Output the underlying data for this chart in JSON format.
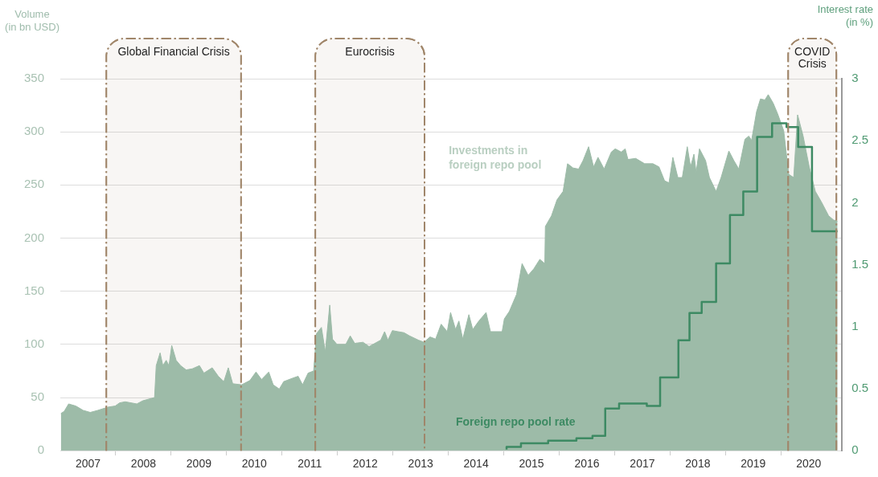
{
  "chart_data": {
    "type": "area",
    "ylabel": "Volume\n(in bn USD)",
    "y2label": "Interest rate\n(in %)",
    "xlim": [
      2007,
      2021.1
    ],
    "xticks": [
      {
        "value": 2007.5,
        "label": "2007"
      },
      {
        "value": 2008,
        "label": null
      },
      {
        "value": 2008.5,
        "label": "2008"
      },
      {
        "value": 2009,
        "label": null
      },
      {
        "value": 2009.5,
        "label": "2009"
      },
      {
        "value": 2010,
        "label": null
      },
      {
        "value": 2010.5,
        "label": "2010"
      },
      {
        "value": 2011,
        "label": null
      },
      {
        "value": 2011.5,
        "label": "2011"
      },
      {
        "value": 2012,
        "label": null
      },
      {
        "value": 2012.5,
        "label": "2012"
      },
      {
        "value": 2013,
        "label": null
      },
      {
        "value": 2013.5,
        "label": "2013"
      },
      {
        "value": 2014,
        "label": null
      },
      {
        "value": 2014.5,
        "label": "2014"
      },
      {
        "value": 2015,
        "label": null
      },
      {
        "value": 2015.5,
        "label": "2015"
      },
      {
        "value": 2016,
        "label": null
      },
      {
        "value": 2016.5,
        "label": "2016"
      },
      {
        "value": 2017,
        "label": null
      },
      {
        "value": 2017.5,
        "label": "2017"
      },
      {
        "value": 2018,
        "label": null
      },
      {
        "value": 2018.5,
        "label": "2018"
      },
      {
        "value": 2019,
        "label": null
      },
      {
        "value": 2019.5,
        "label": "2019"
      },
      {
        "value": 2020,
        "label": null
      },
      {
        "value": 2020.5,
        "label": "2020"
      }
    ],
    "ylim": [
      0,
      350
    ],
    "yticks": [
      0,
      50,
      100,
      150,
      200,
      250,
      300,
      350
    ],
    "y2lim": [
      0,
      3
    ],
    "y2ticks": [
      0,
      0.5,
      1,
      1.5,
      2,
      2.5,
      3
    ],
    "grid": "y",
    "legend": false,
    "bands": [
      {
        "axis": "x",
        "from": 2007.83,
        "to": 2010.26,
        "label": "Global Financial Crisis",
        "color": "#a0866a"
      },
      {
        "axis": "x",
        "from": 2011.6,
        "to": 2013.57,
        "label": "Eurocrisis",
        "color": "#a0866a"
      },
      {
        "axis": "x",
        "from": 2020.13,
        "to": 2021.0,
        "label": "COVID Crisis",
        "color": "#a0866a"
      }
    ],
    "series": [
      {
        "name": "Investments in foreign repo pool",
        "type": "area",
        "color": "#9dbba8",
        "x": [
          2007.01,
          2007.07,
          2007.15,
          2007.28,
          2007.41,
          2007.54,
          2007.68,
          2007.86,
          2007.99,
          2008.07,
          2008.17,
          2008.38,
          2008.49,
          2008.7,
          2008.73,
          2008.8,
          2008.85,
          2008.91,
          2008.96,
          2009.01,
          2009.09,
          2009.17,
          2009.27,
          2009.38,
          2009.51,
          2009.59,
          2009.74,
          2009.85,
          2009.95,
          2010.03,
          2010.11,
          2010.27,
          2010.42,
          2010.53,
          2010.63,
          2010.76,
          2010.84,
          2010.95,
          2011.03,
          2011.18,
          2011.29,
          2011.37,
          2011.47,
          2011.57,
          2011.62,
          2011.71,
          2011.78,
          2011.86,
          2011.91,
          2011.99,
          2012.15,
          2012.23,
          2012.31,
          2012.46,
          2012.57,
          2012.78,
          2012.85,
          2012.91,
          2012.99,
          2013.09,
          2013.2,
          2013.3,
          2013.46,
          2013.56,
          2013.67,
          2013.77,
          2013.87,
          2013.98,
          2014.04,
          2014.13,
          2014.19,
          2014.26,
          2014.37,
          2014.44,
          2014.55,
          2014.68,
          2014.76,
          2014.97,
          2015.01,
          2015.1,
          2015.23,
          2015.33,
          2015.44,
          2015.54,
          2015.65,
          2015.74,
          2015.75,
          2015.86,
          2015.96,
          2016.07,
          2016.15,
          2016.25,
          2016.35,
          2016.43,
          2016.53,
          2016.62,
          2016.7,
          2016.81,
          2016.94,
          2017.01,
          2017.12,
          2017.19,
          2017.24,
          2017.38,
          2017.54,
          2017.69,
          2017.8,
          2017.9,
          2017.98,
          2018.05,
          2018.14,
          2018.22,
          2018.31,
          2018.37,
          2018.43,
          2018.47,
          2018.53,
          2018.64,
          2018.71,
          2018.83,
          2018.92,
          2019.06,
          2019.15,
          2019.24,
          2019.35,
          2019.42,
          2019.47,
          2019.56,
          2019.63,
          2019.71,
          2019.77,
          2019.86,
          2019.94,
          2020.05,
          2020.14,
          2020.23,
          2020.3,
          2020.4,
          2020.51,
          2020.62,
          2020.73,
          2020.86,
          2020.95,
          2021.02
        ],
        "values": [
          35,
          37,
          44,
          42,
          38,
          36,
          38,
          41,
          42,
          45,
          46,
          44,
          47,
          50,
          80,
          92,
          80,
          85,
          80,
          99,
          85,
          80,
          76,
          77,
          80,
          73,
          78,
          70,
          65,
          78,
          63,
          62,
          66,
          74,
          67,
          74,
          62,
          58,
          65,
          68,
          70,
          62,
          73,
          75,
          110,
          116,
          93,
          137,
          105,
          100,
          100,
          108,
          101,
          102,
          98,
          104,
          112,
          104,
          113,
          112,
          111,
          108,
          104,
          102,
          107,
          105,
          119,
          112,
          130,
          114,
          122,
          105,
          128,
          114,
          122,
          130,
          112,
          112,
          124,
          131,
          147,
          176,
          165,
          171,
          180,
          176,
          211,
          221,
          236,
          244,
          270,
          266,
          265,
          273,
          286,
          267,
          276,
          265,
          281,
          284,
          281,
          284,
          274,
          275,
          270,
          270,
          267,
          254,
          252,
          276,
          257,
          257,
          286,
          267,
          279,
          262,
          284,
          273,
          257,
          244,
          257,
          282,
          273,
          265,
          293,
          296,
          292,
          319,
          331,
          330,
          335,
          327,
          317,
          301,
          260,
          257,
          316,
          296,
          267,
          244,
          234,
          221,
          217,
          216
        ]
      },
      {
        "name": "Foreign repo pool rate",
        "type": "step",
        "color": "#3d8a63",
        "axis": "y2",
        "x": [
          2015.05,
          2015.31,
          2015.8,
          2016.31,
          2016.6,
          2016.83,
          2017.08,
          2017.58,
          2017.82,
          2018.15,
          2018.35,
          2018.57,
          2018.83,
          2019.08,
          2019.32,
          2019.57,
          2019.84,
          2020.1,
          2020.31,
          2020.56,
          2020.82,
          2021.02
        ],
        "values": [
          0.01,
          0.03,
          0.06,
          0.08,
          0.1,
          0.12,
          0.34,
          0.38,
          0.36,
          0.59,
          0.89,
          1.11,
          1.2,
          1.51,
          1.9,
          2.09,
          2.53,
          2.64,
          2.61,
          2.45,
          1.77,
          1.77
        ]
      }
    ]
  }
}
